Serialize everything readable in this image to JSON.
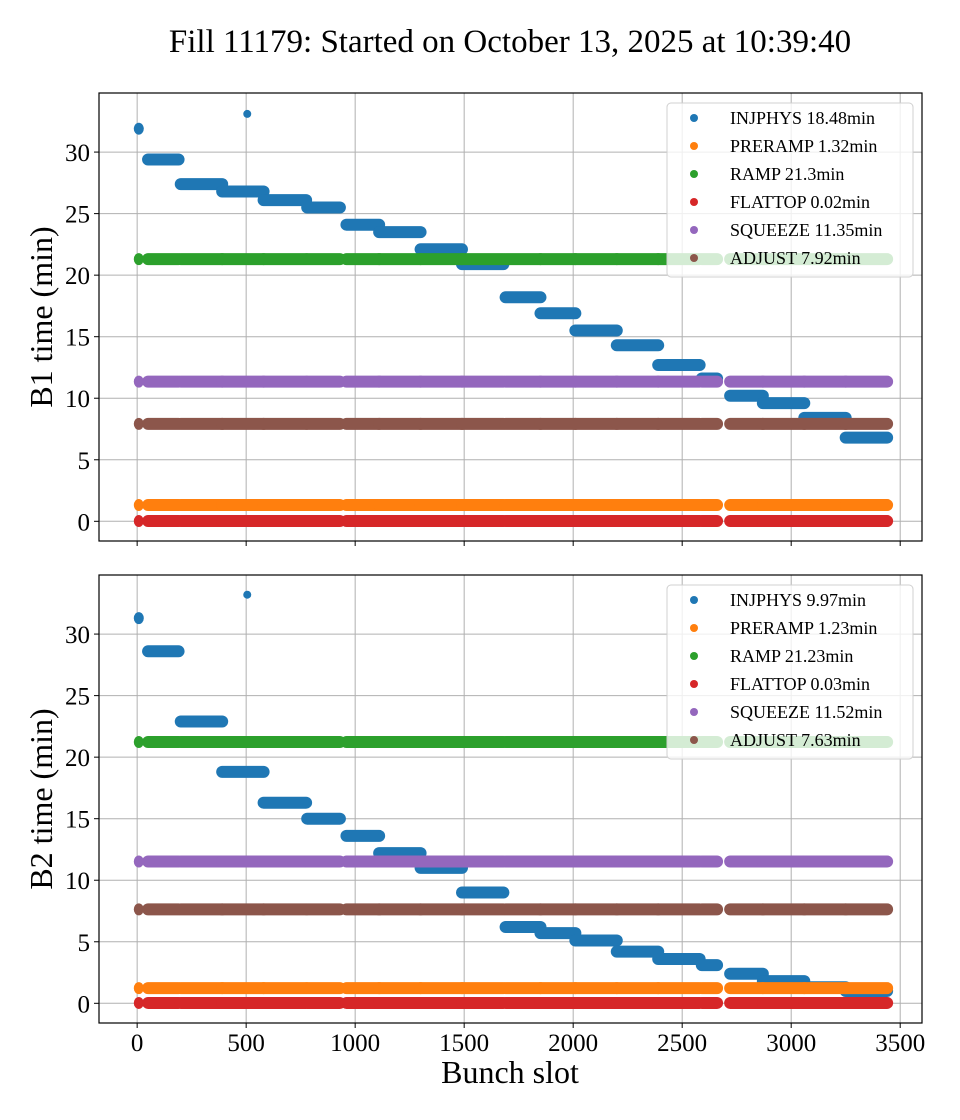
{
  "chart_data": {
    "type": "scatter",
    "title": "Fill 11179: Started on October 13, 2025 at 10:39:40",
    "xlabel": "Bunch slot",
    "xlim": [
      -175,
      3600
    ],
    "xticks": [
      0,
      500,
      1000,
      1500,
      2000,
      2500,
      3000,
      3500
    ],
    "grid": true,
    "legend_placement": "top-right",
    "segments": [
      [
        0,
        15
      ],
      [
        50,
        190
      ],
      [
        200,
        390
      ],
      [
        390,
        580
      ],
      [
        580,
        775
      ],
      [
        780,
        930
      ],
      [
        960,
        1110
      ],
      [
        1110,
        1300
      ],
      [
        1300,
        1490
      ],
      [
        1490,
        1680
      ],
      [
        1690,
        1850
      ],
      [
        1850,
        2010
      ],
      [
        2010,
        2200
      ],
      [
        2200,
        2390
      ],
      [
        2390,
        2580
      ],
      [
        2590,
        2660
      ],
      [
        2720,
        2870
      ],
      [
        2870,
        3060
      ],
      [
        3060,
        3250
      ],
      [
        3250,
        3440
      ]
    ],
    "panels": [
      {
        "ylabel": "B1 time (min)",
        "ylim": [
          -1.6,
          34.8
        ],
        "yticks": [
          0,
          5,
          10,
          15,
          20,
          25,
          30
        ],
        "series": [
          {
            "name": "INJPHYS",
            "legend": "INJPHYS 18.48min",
            "color": "#1f77b4",
            "segment_values": [
              31.9,
              29.4,
              27.4,
              26.8,
              26.1,
              25.5,
              24.1,
              23.5,
              22.1,
              20.9,
              18.2,
              16.9,
              15.5,
              14.3,
              12.7,
              11.6,
              10.2,
              9.6,
              8.4,
              6.8
            ],
            "extra_points": [
              {
                "x": 505,
                "y": 33.1
              }
            ]
          },
          {
            "name": "PRERAMP",
            "legend": "PRERAMP 1.32min",
            "color": "#ff7f0e",
            "constant": 1.32
          },
          {
            "name": "RAMP",
            "legend": "RAMP 21.3min",
            "color": "#2ca02c",
            "constant": 21.3
          },
          {
            "name": "FLATTOP",
            "legend": "FLATTOP 0.02min",
            "color": "#d62728",
            "constant": 0.02
          },
          {
            "name": "SQUEEZE",
            "legend": "SQUEEZE 11.35min",
            "color": "#9467bd",
            "constant": 11.35
          },
          {
            "name": "ADJUST",
            "legend": "ADJUST 7.92min",
            "color": "#8c564b",
            "constant": 7.92
          }
        ]
      },
      {
        "ylabel": "B2 time (min)",
        "ylim": [
          -1.6,
          34.8
        ],
        "yticks": [
          0,
          5,
          10,
          15,
          20,
          25,
          30
        ],
        "series": [
          {
            "name": "INJPHYS",
            "legend": "INJPHYS 9.97min",
            "color": "#1f77b4",
            "segment_values": [
              31.3,
              28.6,
              22.9,
              18.8,
              16.3,
              15.0,
              13.6,
              12.2,
              11.0,
              9.0,
              6.2,
              5.7,
              5.1,
              4.2,
              3.6,
              3.1,
              2.4,
              1.8,
              1.3,
              1.0
            ],
            "extra_points": [
              {
                "x": 505,
                "y": 33.2
              }
            ]
          },
          {
            "name": "PRERAMP",
            "legend": "PRERAMP 1.23min",
            "color": "#ff7f0e",
            "constant": 1.23
          },
          {
            "name": "RAMP",
            "legend": "RAMP 21.23min",
            "color": "#2ca02c",
            "constant": 21.23
          },
          {
            "name": "FLATTOP",
            "legend": "FLATTOP 0.03min",
            "color": "#d62728",
            "constant": 0.03
          },
          {
            "name": "SQUEEZE",
            "legend": "SQUEEZE 11.52min",
            "color": "#9467bd",
            "constant": 11.52
          },
          {
            "name": "ADJUST",
            "legend": "ADJUST 7.63min",
            "color": "#8c564b",
            "constant": 7.63
          }
        ]
      }
    ]
  }
}
